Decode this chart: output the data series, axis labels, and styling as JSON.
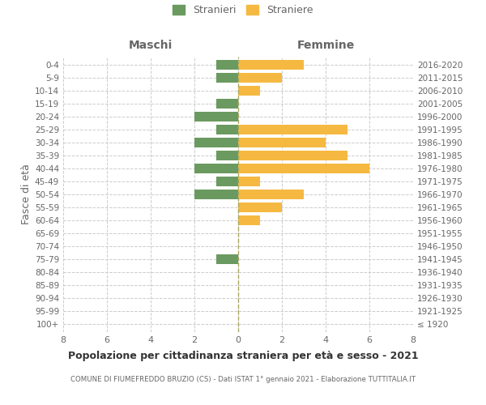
{
  "age_groups": [
    "100+",
    "95-99",
    "90-94",
    "85-89",
    "80-84",
    "75-79",
    "70-74",
    "65-69",
    "60-64",
    "55-59",
    "50-54",
    "45-49",
    "40-44",
    "35-39",
    "30-34",
    "25-29",
    "20-24",
    "15-19",
    "10-14",
    "5-9",
    "0-4"
  ],
  "birth_years": [
    "≤ 1920",
    "1921-1925",
    "1926-1930",
    "1931-1935",
    "1936-1940",
    "1941-1945",
    "1946-1950",
    "1951-1955",
    "1956-1960",
    "1961-1965",
    "1966-1970",
    "1971-1975",
    "1976-1980",
    "1981-1985",
    "1986-1990",
    "1991-1995",
    "1996-2000",
    "2001-2005",
    "2006-2010",
    "2011-2015",
    "2016-2020"
  ],
  "males": [
    0,
    0,
    0,
    0,
    0,
    1,
    0,
    0,
    0,
    0,
    2,
    1,
    2,
    1,
    2,
    1,
    2,
    1,
    0,
    1,
    1
  ],
  "females": [
    0,
    0,
    0,
    0,
    0,
    0,
    0,
    0,
    1,
    2,
    3,
    1,
    6,
    5,
    4,
    5,
    0,
    0,
    1,
    2,
    3
  ],
  "male_color": "#6a9a5f",
  "female_color": "#f5b942",
  "title": "Popolazione per cittadinanza straniera per età e sesso - 2021",
  "subtitle": "COMUNE DI FIUMEFREDDO BRUZIO (CS) - Dati ISTAT 1° gennaio 2021 - Elaborazione TUTTITALIA.IT",
  "ylabel_left": "Fasce di età",
  "header_left": "Maschi",
  "header_right": "Femmine",
  "legend_male": "Stranieri",
  "legend_female": "Straniere",
  "xlim": 8,
  "background_color": "#ffffff",
  "grid_color": "#cccccc",
  "text_color": "#666666",
  "dashed_line_color": "#aaa860"
}
